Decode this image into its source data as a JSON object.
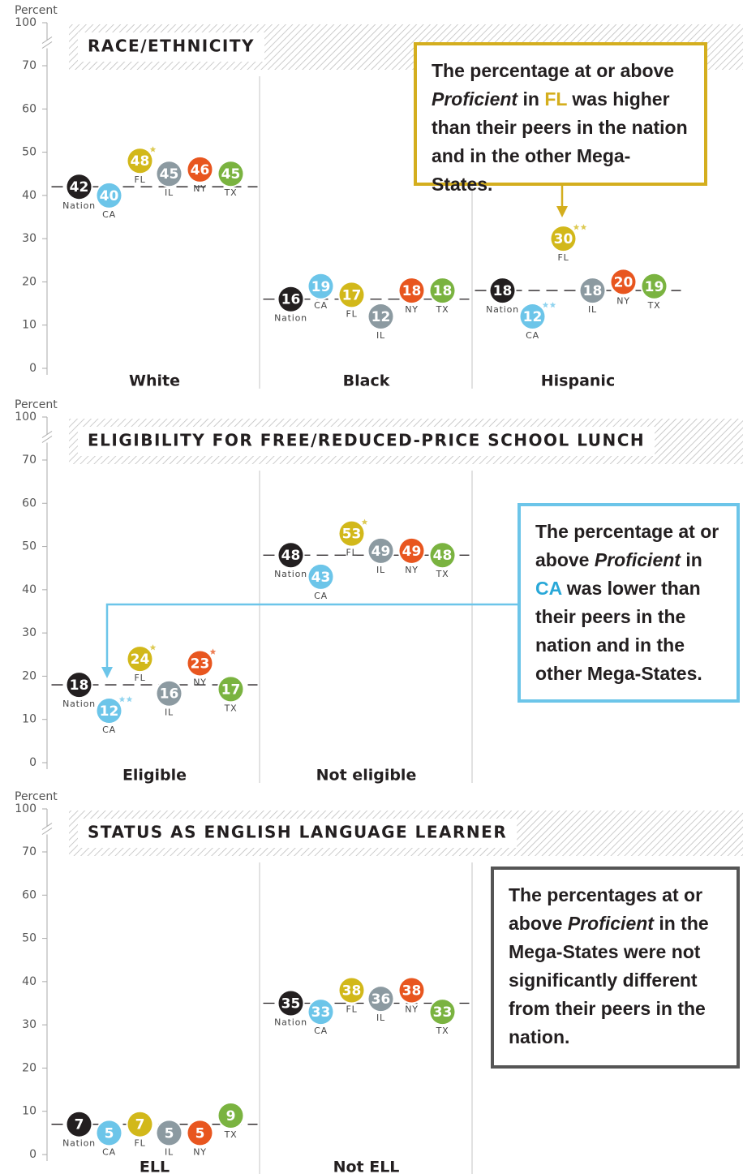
{
  "chart_data": [
    {
      "type": "dot",
      "title": "RACE/ETHNICITY",
      "ylabel": "Percent",
      "ylim": [
        0,
        100
      ],
      "yticks": [
        0,
        10,
        20,
        30,
        40,
        50,
        60,
        70,
        100
      ],
      "axis_break": [
        70,
        100
      ],
      "categories": [
        "White",
        "Black",
        "Hispanic"
      ],
      "series": [
        {
          "name": "Nation",
          "color": "#231f20",
          "values": [
            42,
            16,
            18
          ],
          "stars": [
            0,
            0,
            0
          ]
        },
        {
          "name": "CA",
          "color": "#6cc5e9",
          "values": [
            40,
            19,
            12
          ],
          "stars": [
            0,
            0,
            2
          ]
        },
        {
          "name": "FL",
          "color": "#d2b81a",
          "values": [
            48,
            17,
            30
          ],
          "stars": [
            1,
            0,
            2
          ]
        },
        {
          "name": "IL",
          "color": "#8c9aa1",
          "values": [
            45,
            12,
            18
          ],
          "stars": [
            0,
            0,
            0
          ]
        },
        {
          "name": "NY",
          "color": "#e8561f",
          "values": [
            46,
            18,
            20
          ],
          "stars": [
            0,
            0,
            0
          ]
        },
        {
          "name": "TX",
          "color": "#7ab340",
          "values": [
            45,
            18,
            19
          ],
          "stars": [
            0,
            0,
            0
          ]
        }
      ],
      "annotation": {
        "border": "#d4ae1e",
        "segments": [
          {
            "text": "The percentage at or above "
          },
          {
            "text": "Proficient",
            "italic": true
          },
          {
            "text": " in "
          },
          {
            "text": "FL",
            "color": "#d4ae1e"
          },
          {
            "text": " was higher than their peers in the nation and in the other Mega-States."
          }
        ]
      }
    },
    {
      "type": "dot",
      "title": "ELIGIBILITY FOR FREE/REDUCED-PRICE SCHOOL LUNCH",
      "ylabel": "Percent",
      "ylim": [
        0,
        100
      ],
      "yticks": [
        0,
        10,
        20,
        30,
        40,
        50,
        60,
        70,
        100
      ],
      "axis_break": [
        70,
        100
      ],
      "categories": [
        "Eligible",
        "Not eligible"
      ],
      "series": [
        {
          "name": "Nation",
          "color": "#231f20",
          "values": [
            18,
            48
          ],
          "stars": [
            0,
            0
          ]
        },
        {
          "name": "CA",
          "color": "#6cc5e9",
          "values": [
            12,
            43
          ],
          "stars": [
            2,
            0
          ]
        },
        {
          "name": "FL",
          "color": "#d2b81a",
          "values": [
            24,
            53
          ],
          "stars": [
            1,
            1
          ]
        },
        {
          "name": "IL",
          "color": "#8c9aa1",
          "values": [
            16,
            49
          ],
          "stars": [
            0,
            0
          ]
        },
        {
          "name": "NY",
          "color": "#e8561f",
          "values": [
            23,
            49
          ],
          "stars": [
            1,
            0
          ]
        },
        {
          "name": "TX",
          "color": "#7ab340",
          "values": [
            17,
            48
          ],
          "stars": [
            0,
            0
          ]
        }
      ],
      "annotation": {
        "border": "#6cc5e9",
        "segments": [
          {
            "text": "The percentage at or above "
          },
          {
            "text": "Proficient",
            "italic": true
          },
          {
            "text": " in "
          },
          {
            "text": "CA",
            "color": "#29a8d8"
          },
          {
            "text": " was lower than their peers in the nation and in the other Mega-States."
          }
        ]
      }
    },
    {
      "type": "dot",
      "title": "STATUS AS ENGLISH LANGUAGE LEARNER",
      "ylabel": "Percent",
      "ylim": [
        0,
        100
      ],
      "yticks": [
        0,
        10,
        20,
        30,
        40,
        50,
        60,
        70,
        100
      ],
      "axis_break": [
        70,
        100
      ],
      "categories": [
        "ELL",
        "Not ELL"
      ],
      "series": [
        {
          "name": "Nation",
          "color": "#231f20",
          "values": [
            7,
            35
          ],
          "stars": [
            0,
            0
          ]
        },
        {
          "name": "CA",
          "color": "#6cc5e9",
          "values": [
            5,
            33
          ],
          "stars": [
            0,
            0
          ]
        },
        {
          "name": "FL",
          "color": "#d2b81a",
          "values": [
            7,
            38
          ],
          "stars": [
            0,
            0
          ]
        },
        {
          "name": "IL",
          "color": "#8c9aa1",
          "values": [
            5,
            36
          ],
          "stars": [
            0,
            0
          ]
        },
        {
          "name": "NY",
          "color": "#e8561f",
          "values": [
            5,
            38
          ],
          "stars": [
            0,
            0
          ]
        },
        {
          "name": "TX",
          "color": "#7ab340",
          "values": [
            9,
            33
          ],
          "stars": [
            0,
            0
          ]
        }
      ],
      "annotation": {
        "border": "#555555",
        "segments": [
          {
            "text": "The percentages at or above "
          },
          {
            "text": "Proficient",
            "italic": true
          },
          {
            "text": " in the Mega-States were not significantly different from their peers in the nation."
          }
        ]
      }
    }
  ]
}
